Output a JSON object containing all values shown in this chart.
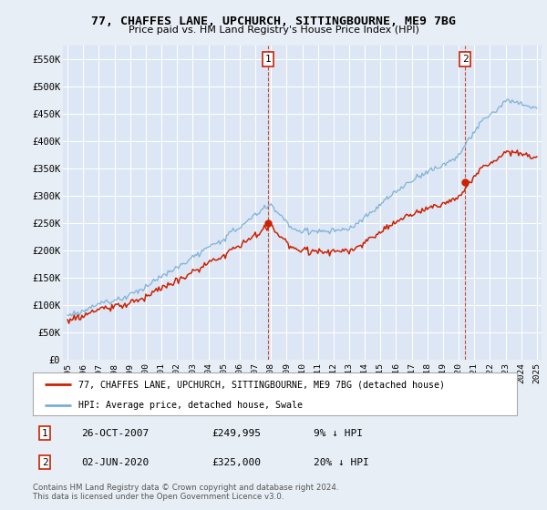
{
  "title1": "77, CHAFFES LANE, UPCHURCH, SITTINGBOURNE, ME9 7BG",
  "title2": "Price paid vs. HM Land Registry's House Price Index (HPI)",
  "background_color": "#e8eef5",
  "plot_bg_color": "#dce6f5",
  "grid_color": "#c8d4e8",
  "sale1_date_label": "26-OCT-2007",
  "sale1_price": 249995,
  "sale1_year": 2007.833,
  "sale2_date_label": "02-JUN-2020",
  "sale2_price": 325000,
  "sale2_year": 2020.417,
  "legend_line1": "77, CHAFFES LANE, UPCHURCH, SITTINGBOURNE, ME9 7BG (detached house)",
  "legend_line2": "HPI: Average price, detached house, Swale",
  "footer1": "Contains HM Land Registry data © Crown copyright and database right 2024.",
  "footer2": "This data is licensed under the Open Government Licence v3.0.",
  "hpi_color": "#7bafd4",
  "price_color": "#cc2200",
  "ylim_min": 0,
  "ylim_max": 575000,
  "xlim_min": 1994.7,
  "xlim_max": 2025.3
}
